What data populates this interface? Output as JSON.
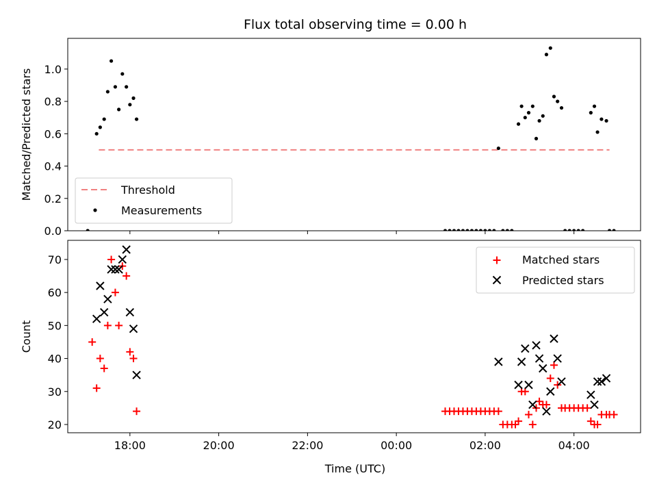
{
  "title": "Flux total observing time = 0.00 h",
  "x_axis": {
    "label": "Time (UTC)",
    "ticks": [
      "18:00",
      "20:00",
      "22:00",
      "00:00",
      "02:00",
      "04:00"
    ],
    "tick_values": [
      18,
      20,
      22,
      24,
      26,
      28
    ],
    "range": [
      16.6,
      29.5
    ]
  },
  "colors": {
    "threshold": "#f08080",
    "measurement": "#000000",
    "matched": "#ff0000",
    "predicted": "#000000"
  },
  "chart_data": [
    {
      "type": "scatter",
      "ylabel": "Matched/Predicted stars",
      "ylim": [
        0,
        1.19
      ],
      "yticks": [
        0.0,
        0.2,
        0.4,
        0.6,
        0.8,
        1.0
      ],
      "ytick_labels": [
        "0.0",
        "0.2",
        "0.4",
        "0.6",
        "0.8",
        "1.0"
      ],
      "legend_position": "lower-left",
      "threshold": {
        "name": "Threshold",
        "y": 0.5,
        "x": [
          17.3,
          28.8
        ]
      },
      "series": [
        {
          "name": "Measurements",
          "marker": "dot",
          "points": [
            [
              17.05,
              0.0
            ],
            [
              17.25,
              0.6
            ],
            [
              17.33,
              0.64
            ],
            [
              17.42,
              0.69
            ],
            [
              17.5,
              0.86
            ],
            [
              17.58,
              1.05
            ],
            [
              17.67,
              0.89
            ],
            [
              17.75,
              0.75
            ],
            [
              17.83,
              0.97
            ],
            [
              17.92,
              0.89
            ],
            [
              18.0,
              0.78
            ],
            [
              18.08,
              0.82
            ],
            [
              18.15,
              0.69
            ],
            [
              25.1,
              0.0
            ],
            [
              25.2,
              0.0
            ],
            [
              25.3,
              0.0
            ],
            [
              25.4,
              0.0
            ],
            [
              25.5,
              0.0
            ],
            [
              25.6,
              0.0
            ],
            [
              25.7,
              0.0
            ],
            [
              25.8,
              0.0
            ],
            [
              25.9,
              0.0
            ],
            [
              26.0,
              0.0
            ],
            [
              26.1,
              0.0
            ],
            [
              26.2,
              0.0
            ],
            [
              26.3,
              0.51
            ],
            [
              26.4,
              0.0
            ],
            [
              26.5,
              0.0
            ],
            [
              26.6,
              0.0
            ],
            [
              26.75,
              0.66
            ],
            [
              26.82,
              0.77
            ],
            [
              26.9,
              0.7
            ],
            [
              26.98,
              0.73
            ],
            [
              27.07,
              0.77
            ],
            [
              27.15,
              0.57
            ],
            [
              27.22,
              0.68
            ],
            [
              27.3,
              0.71
            ],
            [
              27.38,
              1.09
            ],
            [
              27.47,
              1.13
            ],
            [
              27.55,
              0.83
            ],
            [
              27.63,
              0.8
            ],
            [
              27.72,
              0.76
            ],
            [
              27.8,
              0.0
            ],
            [
              27.9,
              0.0
            ],
            [
              28.0,
              0.0
            ],
            [
              28.1,
              0.0
            ],
            [
              28.2,
              0.0
            ],
            [
              28.38,
              0.73
            ],
            [
              28.46,
              0.77
            ],
            [
              28.53,
              0.61
            ],
            [
              28.62,
              0.69
            ],
            [
              28.73,
              0.68
            ],
            [
              28.8,
              0.0
            ],
            [
              28.9,
              0.0
            ]
          ]
        }
      ]
    },
    {
      "type": "scatter",
      "ylabel": "Count",
      "ylim": [
        17.5,
        75.8
      ],
      "yticks": [
        20,
        30,
        40,
        50,
        60,
        70
      ],
      "ytick_labels": [
        "20",
        "30",
        "40",
        "50",
        "60",
        "70"
      ],
      "legend_position": "upper-right",
      "series": [
        {
          "name": "Matched stars",
          "marker": "plus",
          "points": [
            [
              17.15,
              45
            ],
            [
              17.25,
              31
            ],
            [
              17.33,
              40
            ],
            [
              17.42,
              37
            ],
            [
              17.5,
              50
            ],
            [
              17.58,
              70
            ],
            [
              17.67,
              60
            ],
            [
              17.75,
              50
            ],
            [
              17.83,
              68
            ],
            [
              17.92,
              65
            ],
            [
              18.0,
              42
            ],
            [
              18.08,
              40
            ],
            [
              18.15,
              24
            ],
            [
              25.1,
              24
            ],
            [
              25.2,
              24
            ],
            [
              25.3,
              24
            ],
            [
              25.4,
              24
            ],
            [
              25.5,
              24
            ],
            [
              25.6,
              24
            ],
            [
              25.7,
              24
            ],
            [
              25.8,
              24
            ],
            [
              25.9,
              24
            ],
            [
              26.0,
              24
            ],
            [
              26.1,
              24
            ],
            [
              26.2,
              24
            ],
            [
              26.3,
              24
            ],
            [
              26.4,
              20
            ],
            [
              26.5,
              20
            ],
            [
              26.6,
              20
            ],
            [
              26.68,
              20
            ],
            [
              26.75,
              21
            ],
            [
              26.82,
              30
            ],
            [
              26.9,
              30
            ],
            [
              26.98,
              23
            ],
            [
              27.07,
              20
            ],
            [
              27.15,
              25
            ],
            [
              27.22,
              27
            ],
            [
              27.3,
              26
            ],
            [
              27.38,
              26
            ],
            [
              27.47,
              34
            ],
            [
              27.55,
              38
            ],
            [
              27.63,
              32
            ],
            [
              27.72,
              25
            ],
            [
              27.8,
              25
            ],
            [
              27.9,
              25
            ],
            [
              28.0,
              25
            ],
            [
              28.1,
              25
            ],
            [
              28.2,
              25
            ],
            [
              28.3,
              25
            ],
            [
              28.38,
              21
            ],
            [
              28.46,
              20
            ],
            [
              28.53,
              20
            ],
            [
              28.62,
              23
            ],
            [
              28.73,
              23
            ],
            [
              28.8,
              23
            ],
            [
              28.9,
              23
            ]
          ]
        },
        {
          "name": "Predicted stars",
          "marker": "cross",
          "points": [
            [
              17.25,
              52
            ],
            [
              17.33,
              62
            ],
            [
              17.42,
              54
            ],
            [
              17.5,
              58
            ],
            [
              17.58,
              67
            ],
            [
              17.67,
              67
            ],
            [
              17.75,
              67
            ],
            [
              17.83,
              70
            ],
            [
              17.92,
              73
            ],
            [
              18.0,
              54
            ],
            [
              18.08,
              49
            ],
            [
              18.15,
              35
            ],
            [
              26.3,
              39
            ],
            [
              26.75,
              32
            ],
            [
              26.82,
              39
            ],
            [
              26.9,
              43
            ],
            [
              26.98,
              32
            ],
            [
              27.07,
              26
            ],
            [
              27.15,
              44
            ],
            [
              27.22,
              40
            ],
            [
              27.3,
              37
            ],
            [
              27.38,
              24
            ],
            [
              27.47,
              30
            ],
            [
              27.55,
              46
            ],
            [
              27.63,
              40
            ],
            [
              27.72,
              33
            ],
            [
              28.38,
              29
            ],
            [
              28.46,
              26
            ],
            [
              28.53,
              33
            ],
            [
              28.62,
              33
            ],
            [
              28.73,
              34
            ]
          ]
        }
      ]
    }
  ]
}
